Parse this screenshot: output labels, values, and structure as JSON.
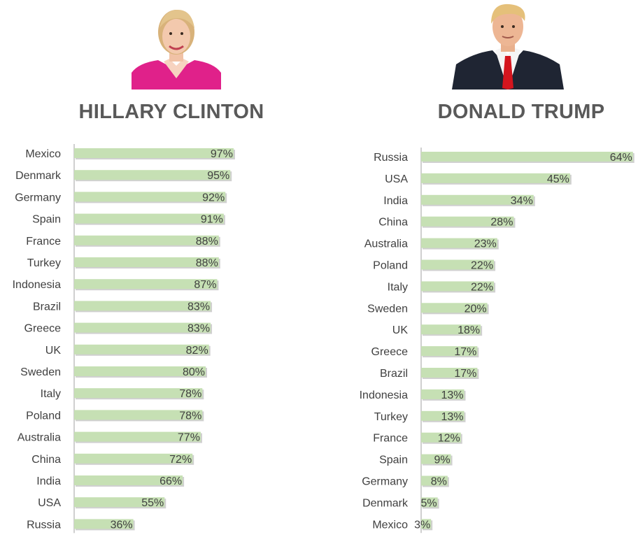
{
  "colors": {
    "bar": "#c6e0b4",
    "axis": "#bfbfbf",
    "text": "#404040",
    "heading": "#595959"
  },
  "panels": {
    "clinton": {
      "heading": "HILLARY CLINTON",
      "portrait_icon": "woman-portrait-icon"
    },
    "trump": {
      "heading": "DONALD TRUMP",
      "portrait_icon": "man-portrait-icon"
    }
  },
  "chart_data": [
    {
      "type": "bar",
      "orientation": "horizontal",
      "title": "HILLARY CLINTON",
      "categories": [
        "Mexico",
        "Denmark",
        "Germany",
        "Spain",
        "France",
        "Turkey",
        "Indonesia",
        "Brazil",
        "Greece",
        "UK",
        "Sweden",
        "Italy",
        "Poland",
        "Australia",
        "China",
        "India",
        "USA",
        "Russia"
      ],
      "values": [
        97,
        95,
        92,
        91,
        88,
        88,
        87,
        83,
        83,
        82,
        80,
        78,
        78,
        77,
        72,
        66,
        55,
        36
      ],
      "value_suffix": "%",
      "data_labels": true,
      "grid": false
    },
    {
      "type": "bar",
      "orientation": "horizontal",
      "title": "DONALD TRUMP",
      "categories": [
        "Russia",
        "USA",
        "India",
        "China",
        "Australia",
        "Poland",
        "Italy",
        "Sweden",
        "UK",
        "Greece",
        "Brazil",
        "Indonesia",
        "Turkey",
        "France",
        "Spain",
        "Germany",
        "Denmark",
        "Mexico"
      ],
      "values": [
        64,
        45,
        34,
        28,
        23,
        22,
        22,
        20,
        18,
        17,
        17,
        13,
        13,
        12,
        9,
        8,
        5,
        3
      ],
      "value_suffix": "%",
      "data_labels": true,
      "grid": false
    }
  ]
}
